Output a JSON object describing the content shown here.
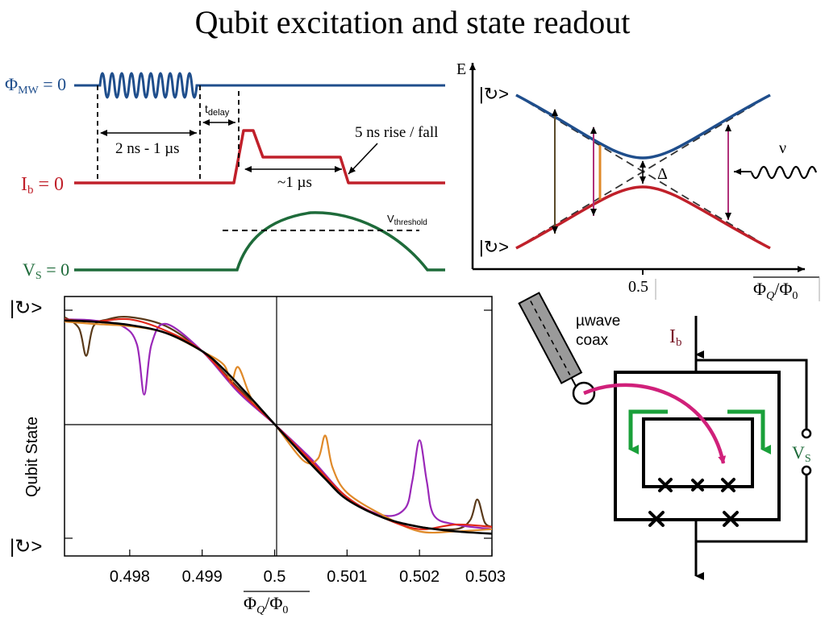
{
  "title": "Qubit excitation and state readout",
  "colors": {
    "mw": "#1f4e8c",
    "bias": "#c0202a",
    "vs": "#1e6b3a",
    "band_upper": "#1f4e8c",
    "band_lower": "#c0202a",
    "transition_dark": "#5a4a2a",
    "transition_magenta": "#b0307a",
    "transition_orange": "#e08a2a",
    "circuit_arrow_green": "#1aa03a",
    "circuit_arrow_magenta": "#d0207a",
    "ib_label": "#7a1a2a",
    "vs_label": "#1e6b3a"
  },
  "timing": {
    "mw_label": "Φ",
    "mw_label_sub": "MW",
    "mw_label_tail": " = 0",
    "ib_label": "I",
    "ib_label_sub": "b",
    "ib_label_tail": " = 0",
    "vs_label": "V",
    "vs_label_sub": "S",
    "vs_label_tail": " = 0",
    "pulse_length_label": "2 ns - 1 µs",
    "tdelay_label": "t",
    "tdelay_sub": "delay",
    "hold_label": "~1 µs",
    "rise_fall_label": "5 ns rise / fall",
    "vthreshold_label": "V",
    "vthreshold_sub": "threshold"
  },
  "energy_diagram": {
    "e_label": "E",
    "delta_label": "Δ",
    "nu_label": "ν",
    "x_tick_label": "0.5",
    "x_axis_label": "Φ",
    "x_axis_sub": "Q",
    "x_axis_tail": "/Φ",
    "x_axis_tail_sub": "0",
    "state_top": "|↻>",
    "state_bottom": "|↻>"
  },
  "circuit": {
    "coax_label_line1": "µwave",
    "coax_label_line2": "coax",
    "ib_label": "I",
    "ib_sub": "b",
    "vs_label": "V",
    "vs_sub": "S"
  },
  "chart_data": {
    "type": "line",
    "title": "",
    "xlabel": "Φ",
    "xlabel_sub": "Q",
    "xlabel_tail": "/Φ",
    "xlabel_tail_sub": "0",
    "ylabel": "Qubit State",
    "xlim": [
      0.4971,
      0.503
    ],
    "ylim": [
      0,
      1
    ],
    "x_ticks": [
      0.498,
      0.499,
      0.5,
      0.501,
      0.502,
      0.503
    ],
    "x_tick_labels": [
      "0.498",
      "0.499",
      "0.5",
      "0.501",
      "0.502",
      "0.503"
    ],
    "y_state_top": "|↻>",
    "y_state_bottom": "|↻>",
    "grid": "center crosshair at x=0.5, y=0.5",
    "legend": "none",
    "series": [
      {
        "color": "#000000",
        "style": "smooth fit",
        "x": [
          0.4971,
          0.4975,
          0.498,
          0.4985,
          0.499,
          0.4993,
          0.4996,
          0.5,
          0.5004,
          0.5007,
          0.501,
          0.5015,
          0.502,
          0.5025,
          0.503
        ],
        "y": [
          0.955,
          0.95,
          0.935,
          0.9,
          0.82,
          0.74,
          0.64,
          0.5,
          0.36,
          0.26,
          0.17,
          0.09,
          0.05,
          0.03,
          0.02
        ]
      },
      {
        "color": "#5a3a1a",
        "style": "data, dip at 0.4974 and peak at 0.5028",
        "x": [
          0.4971,
          0.4973,
          0.4974,
          0.4975,
          0.4977,
          0.498,
          0.4985,
          0.499,
          0.4995,
          0.5,
          0.5005,
          0.501,
          0.5015,
          0.502,
          0.5025,
          0.5027,
          0.5028,
          0.5029,
          0.503
        ],
        "y": [
          0.97,
          0.92,
          0.8,
          0.93,
          0.96,
          0.97,
          0.93,
          0.82,
          0.66,
          0.5,
          0.33,
          0.18,
          0.09,
          0.05,
          0.04,
          0.08,
          0.17,
          0.07,
          0.05
        ]
      },
      {
        "color": "#9a28b8",
        "style": "data, dip at 0.4982 and peak at 0.5020",
        "x": [
          0.4971,
          0.4975,
          0.4979,
          0.4981,
          0.4982,
          0.4983,
          0.4985,
          0.499,
          0.4995,
          0.5,
          0.5005,
          0.501,
          0.5015,
          0.5018,
          0.5019,
          0.502,
          0.5021,
          0.5022,
          0.5025,
          0.503
        ],
        "y": [
          0.96,
          0.955,
          0.93,
          0.85,
          0.63,
          0.85,
          0.94,
          0.82,
          0.64,
          0.5,
          0.35,
          0.18,
          0.1,
          0.13,
          0.25,
          0.43,
          0.25,
          0.1,
          0.06,
          0.04
        ]
      },
      {
        "color": "#e08a2a",
        "style": "data, dip at 0.4994 and peak at 0.5007",
        "x": [
          0.4971,
          0.4975,
          0.498,
          0.4985,
          0.499,
          0.4993,
          0.4994,
          0.4995,
          0.4997,
          0.5,
          0.5004,
          0.5006,
          0.5007,
          0.5008,
          0.501,
          0.5015,
          0.502,
          0.5025,
          0.503
        ],
        "y": [
          0.95,
          0.94,
          0.93,
          0.9,
          0.82,
          0.76,
          0.68,
          0.75,
          0.6,
          0.5,
          0.34,
          0.35,
          0.45,
          0.31,
          0.2,
          0.1,
          0.03,
          0.03,
          0.04
        ]
      },
      {
        "color": "#e0281a",
        "style": "data",
        "x": [
          0.4971,
          0.4975,
          0.498,
          0.4985,
          0.499,
          0.4995,
          0.5,
          0.5005,
          0.501,
          0.5015,
          0.502,
          0.5025,
          0.503
        ],
        "y": [
          0.96,
          0.95,
          0.96,
          0.91,
          0.82,
          0.65,
          0.5,
          0.34,
          0.18,
          0.09,
          0.04,
          0.06,
          0.05
        ]
      }
    ]
  }
}
